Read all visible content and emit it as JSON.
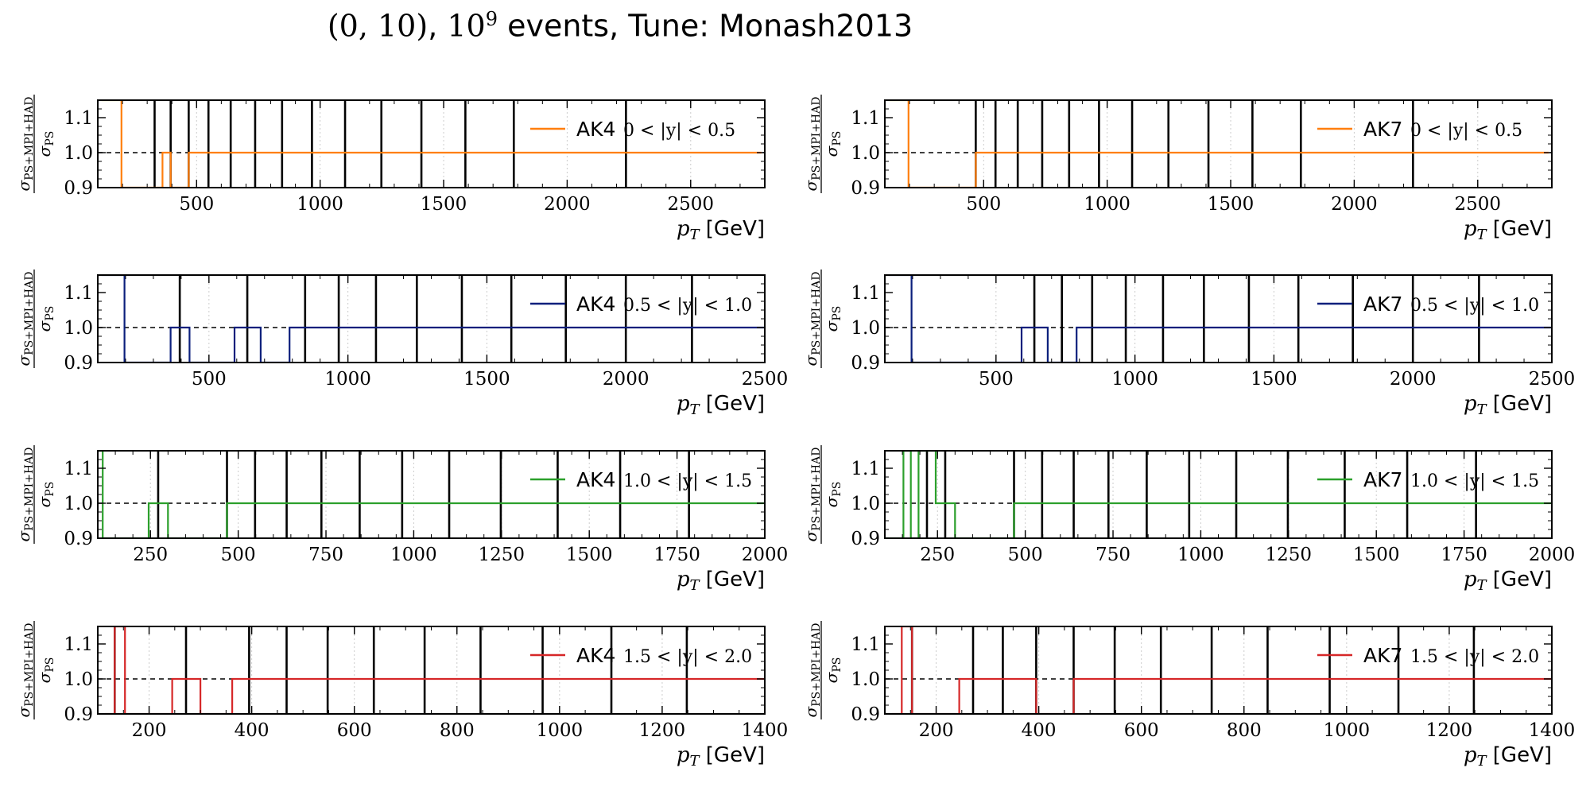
{
  "title": {
    "math_part": "(0, 10)",
    "sep": ", ",
    "events_base": "10",
    "events_exp": "9",
    "rest": " events, Tune: Monash2013"
  },
  "colors": {
    "orange": "#ff7f0e",
    "navy": "#0b1f7c",
    "green": "#2ca02c",
    "red": "#d62728",
    "boundary": "#000000",
    "reference": "#000000"
  },
  "chart_data": [
    {
      "type": "line",
      "jet": "AK4",
      "rapidity": "0 < |y| < 0.5",
      "color": "orange",
      "xlabel": "p_T [GeV]",
      "ylabel": "σ_PS+MPI+HAD / σ_PS",
      "xlim": [
        100,
        2800
      ],
      "ylim": [
        0.9,
        1.15
      ],
      "xticks": [
        500,
        1000,
        1500,
        2000,
        2500
      ],
      "yticks": [
        0.9,
        1.0,
        1.1
      ],
      "bin_edges": [
        114,
        133,
        153,
        174,
        196,
        220,
        245,
        272,
        300,
        330,
        362,
        395,
        430,
        468,
        507,
        548,
        592,
        638,
        686,
        737,
        790,
        846,
        905,
        967,
        1032,
        1101,
        1172,
        1248,
        1327,
        1410,
        1497,
        1588,
        1684,
        1784,
        1890,
        2000,
        2116,
        2238,
        2366,
        2500,
        2640,
        2787
      ],
      "values": [
        1.15,
        1.15,
        1.15,
        1.15,
        0.9,
        0.9,
        0.9,
        0.9,
        0.9,
        0.9,
        1.0,
        0.9,
        0.9,
        1.0,
        1.0,
        1.0,
        1.0,
        1.0,
        1.0,
        1.0,
        1.0,
        1.0,
        1.0,
        1.0,
        1.0,
        1.0,
        1.0,
        1.0,
        1.0,
        1.0,
        1.0,
        1.0,
        1.0,
        1.0,
        1.0,
        1.0,
        1.0,
        1.0,
        1.0,
        1.0,
        1.0
      ],
      "black_lines": [
        330,
        395,
        468,
        548,
        638,
        737,
        846,
        967,
        1101,
        1248,
        1410,
        1588,
        1784,
        2238
      ]
    },
    {
      "type": "line",
      "jet": "AK7",
      "rapidity": "0 < |y| < 0.5",
      "color": "orange",
      "xlabel": "p_T [GeV]",
      "ylabel": "σ_PS+MPI+HAD / σ_PS",
      "xlim": [
        100,
        2800
      ],
      "ylim": [
        0.9,
        1.15
      ],
      "xticks": [
        500,
        1000,
        1500,
        2000,
        2500
      ],
      "yticks": [
        0.9,
        1.0,
        1.1
      ],
      "bin_edges": [
        114,
        133,
        153,
        174,
        196,
        220,
        245,
        272,
        300,
        330,
        362,
        395,
        430,
        468,
        507,
        548,
        592,
        638,
        686,
        737,
        790,
        846,
        905,
        967,
        1032,
        1101,
        1172,
        1248,
        1327,
        1410,
        1497,
        1588,
        1684,
        1784,
        1890,
        2000,
        2116,
        2238,
        2366,
        2500,
        2640,
        2787
      ],
      "values": [
        1.15,
        1.15,
        1.15,
        1.15,
        0.9,
        0.9,
        0.9,
        0.9,
        0.9,
        0.9,
        0.9,
        0.9,
        0.9,
        1.0,
        1.0,
        1.0,
        1.0,
        1.0,
        1.0,
        1.0,
        1.0,
        1.0,
        1.0,
        1.0,
        1.0,
        1.0,
        1.0,
        1.0,
        1.0,
        1.0,
        1.0,
        1.0,
        1.0,
        1.0,
        1.0,
        1.0,
        1.0,
        1.0,
        1.0,
        1.0,
        1.0
      ],
      "black_lines": [
        468,
        548,
        638,
        737,
        846,
        967,
        1101,
        1248,
        1410,
        1588,
        1784,
        2238
      ]
    },
    {
      "type": "line",
      "jet": "AK4",
      "rapidity": "0.5 < |y| < 1.0",
      "color": "navy",
      "xlabel": "p_T [GeV]",
      "ylabel": "σ_PS+MPI+HAD / σ_PS",
      "xlim": [
        100,
        2500
      ],
      "ylim": [
        0.9,
        1.15
      ],
      "xticks": [
        500,
        1000,
        1500,
        2000,
        2500
      ],
      "yticks": [
        0.9,
        1.0,
        1.1
      ],
      "bin_edges": [
        114,
        133,
        153,
        174,
        196,
        220,
        245,
        272,
        300,
        330,
        362,
        395,
        430,
        468,
        507,
        548,
        592,
        638,
        686,
        737,
        790,
        846,
        905,
        967,
        1032,
        1101,
        1172,
        1248,
        1327,
        1410,
        1497,
        1588,
        1684,
        1784,
        1890,
        2000,
        2116,
        2238,
        2366,
        2500
      ],
      "values": [
        1.15,
        1.15,
        1.15,
        1.15,
        0.9,
        0.9,
        0.9,
        0.9,
        0.9,
        0.9,
        1.0,
        1.0,
        0.9,
        0.9,
        0.9,
        0.9,
        1.0,
        1.0,
        0.9,
        0.9,
        1.0,
        1.0,
        1.0,
        1.0,
        1.0,
        1.0,
        1.0,
        1.0,
        1.0,
        1.0,
        1.0,
        1.0,
        1.0,
        1.0,
        1.0,
        1.0,
        1.0,
        1.0,
        1.0
      ],
      "black_lines": [
        395,
        638,
        846,
        967,
        1101,
        1248,
        1410,
        1588,
        1784,
        2000,
        2238
      ]
    },
    {
      "type": "line",
      "jet": "AK7",
      "rapidity": "0.5 < |y| < 1.0",
      "color": "navy",
      "xlabel": "p_T [GeV]",
      "ylabel": "σ_PS+MPI+HAD / σ_PS",
      "xlim": [
        100,
        2500
      ],
      "ylim": [
        0.9,
        1.15
      ],
      "xticks": [
        500,
        1000,
        1500,
        2000,
        2500
      ],
      "yticks": [
        0.9,
        1.0,
        1.1
      ],
      "bin_edges": [
        114,
        133,
        153,
        174,
        196,
        220,
        245,
        272,
        300,
        330,
        362,
        395,
        430,
        468,
        507,
        548,
        592,
        638,
        686,
        737,
        790,
        846,
        905,
        967,
        1032,
        1101,
        1172,
        1248,
        1327,
        1410,
        1497,
        1588,
        1684,
        1784,
        1890,
        2000,
        2116,
        2238,
        2366,
        2500
      ],
      "values": [
        1.15,
        1.15,
        1.15,
        1.15,
        0.9,
        0.9,
        0.9,
        0.9,
        0.9,
        0.9,
        0.9,
        0.9,
        0.9,
        0.9,
        0.9,
        0.9,
        1.0,
        1.0,
        0.9,
        0.9,
        1.0,
        1.0,
        1.0,
        1.0,
        1.0,
        1.0,
        1.0,
        1.0,
        1.0,
        1.0,
        1.0,
        1.0,
        1.0,
        1.0,
        1.0,
        1.0,
        1.0,
        1.0,
        1.0
      ],
      "black_lines": [
        638,
        737,
        846,
        967,
        1101,
        1248,
        1410,
        1588,
        1784,
        2000,
        2238
      ]
    },
    {
      "type": "line",
      "jet": "AK4",
      "rapidity": "1.0 < |y| < 1.5",
      "color": "green",
      "xlabel": "p_T [GeV]",
      "ylabel": "σ_PS+MPI+HAD / σ_PS",
      "xlim": [
        100,
        2000
      ],
      "ylim": [
        0.9,
        1.15
      ],
      "xticks": [
        250,
        500,
        750,
        1000,
        1250,
        1500,
        1750,
        2000
      ],
      "yticks": [
        0.9,
        1.0,
        1.1
      ],
      "bin_edges": [
        97,
        114,
        133,
        153,
        174,
        196,
        220,
        245,
        272,
        300,
        330,
        362,
        395,
        430,
        468,
        507,
        548,
        592,
        638,
        686,
        737,
        790,
        846,
        905,
        967,
        1032,
        1101,
        1172,
        1248,
        1327,
        1410,
        1497,
        1588,
        1684,
        1784,
        1890,
        2000
      ],
      "values": [
        1.15,
        0.9,
        0.9,
        0.9,
        0.9,
        0.9,
        0.9,
        1.0,
        1.0,
        0.9,
        0.9,
        0.9,
        0.9,
        0.9,
        1.0,
        1.0,
        1.0,
        1.0,
        1.0,
        1.0,
        1.0,
        1.0,
        1.0,
        1.0,
        1.0,
        1.0,
        1.0,
        1.0,
        1.0,
        1.0,
        1.0,
        1.0,
        1.0,
        1.0,
        1.0,
        1.0
      ],
      "black_lines": [
        272,
        468,
        548,
        638,
        737,
        846,
        967,
        1101,
        1248,
        1410,
        1588,
        1784
      ]
    },
    {
      "type": "line",
      "jet": "AK7",
      "rapidity": "1.0 < |y| < 1.5",
      "color": "green",
      "xlabel": "p_T [GeV]",
      "ylabel": "σ_PS+MPI+HAD / σ_PS",
      "xlim": [
        100,
        2000
      ],
      "ylim": [
        0.9,
        1.15
      ],
      "xticks": [
        250,
        500,
        750,
        1000,
        1250,
        1500,
        1750,
        2000
      ],
      "yticks": [
        0.9,
        1.0,
        1.1
      ],
      "bin_edges": [
        97,
        114,
        133,
        153,
        174,
        196,
        220,
        245,
        272,
        300,
        330,
        362,
        395,
        430,
        468,
        507,
        548,
        592,
        638,
        686,
        737,
        790,
        846,
        905,
        967,
        1032,
        1101,
        1172,
        1248,
        1327,
        1410,
        1497,
        1588,
        1684,
        1784,
        1890,
        2000
      ],
      "values": [
        0.9,
        0.9,
        0.9,
        1.15,
        0.9,
        1.15,
        1.15,
        1.0,
        1.0,
        0.9,
        0.9,
        0.9,
        0.9,
        0.9,
        1.0,
        1.0,
        1.0,
        1.0,
        1.0,
        1.0,
        1.0,
        1.0,
        1.0,
        1.0,
        1.0,
        1.0,
        1.0,
        1.0,
        1.0,
        1.0,
        1.0,
        1.0,
        1.0,
        1.0,
        1.0,
        1.0
      ],
      "black_lines": [
        220,
        272,
        468,
        548,
        638,
        737,
        846,
        967,
        1101,
        1248,
        1410,
        1588,
        1784
      ]
    },
    {
      "type": "line",
      "jet": "AK4",
      "rapidity": "1.5 < |y| < 2.0",
      "color": "red",
      "xlabel": "p_T [GeV]",
      "ylabel": "σ_PS+MPI+HAD / σ_PS",
      "xlim": [
        100,
        1400
      ],
      "ylim": [
        0.9,
        1.15
      ],
      "xticks": [
        200,
        400,
        600,
        800,
        1000,
        1200,
        1400
      ],
      "yticks": [
        0.9,
        1.0,
        1.1
      ],
      "bin_edges": [
        114,
        133,
        153,
        174,
        196,
        220,
        245,
        272,
        300,
        330,
        362,
        395,
        430,
        468,
        507,
        548,
        592,
        638,
        686,
        737,
        790,
        846,
        905,
        967,
        1032,
        1101,
        1172,
        1248,
        1327,
        1410
      ],
      "values": [
        0.9,
        1.15,
        0.9,
        0.9,
        0.9,
        0.9,
        1.0,
        1.0,
        0.9,
        0.9,
        1.0,
        1.0,
        1.0,
        1.0,
        1.0,
        1.0,
        1.0,
        1.0,
        1.0,
        1.0,
        1.0,
        1.0,
        1.0,
        1.0,
        1.0,
        1.0,
        1.0,
        1.0,
        1.0
      ],
      "black_lines": [
        133,
        272,
        395,
        468,
        548,
        638,
        737,
        846,
        967,
        1101,
        1248
      ]
    },
    {
      "type": "line",
      "jet": "AK7",
      "rapidity": "1.5 < |y| < 2.0",
      "color": "red",
      "xlabel": "p_T [GeV]",
      "ylabel": "σ_PS+MPI+HAD / σ_PS",
      "xlim": [
        100,
        1400
      ],
      "ylim": [
        0.9,
        1.15
      ],
      "xticks": [
        200,
        400,
        600,
        800,
        1000,
        1200,
        1400
      ],
      "yticks": [
        0.9,
        1.0,
        1.1
      ],
      "bin_edges": [
        114,
        133,
        153,
        174,
        196,
        220,
        245,
        272,
        300,
        330,
        362,
        395,
        430,
        468,
        507,
        548,
        592,
        638,
        686,
        737,
        790,
        846,
        905,
        967,
        1032,
        1101,
        1172,
        1248,
        1327,
        1410
      ],
      "values": [
        0.9,
        1.15,
        0.9,
        0.9,
        0.9,
        0.9,
        1.0,
        1.0,
        1.0,
        1.0,
        1.0,
        0.9,
        0.9,
        1.0,
        1.0,
        1.0,
        1.0,
        1.0,
        1.0,
        1.0,
        1.0,
        1.0,
        1.0,
        1.0,
        1.0,
        1.0,
        1.0,
        1.0,
        1.0
      ],
      "black_lines": [
        153,
        272,
        330,
        395,
        468,
        548,
        638,
        737,
        846,
        967,
        1101,
        1248
      ]
    }
  ]
}
